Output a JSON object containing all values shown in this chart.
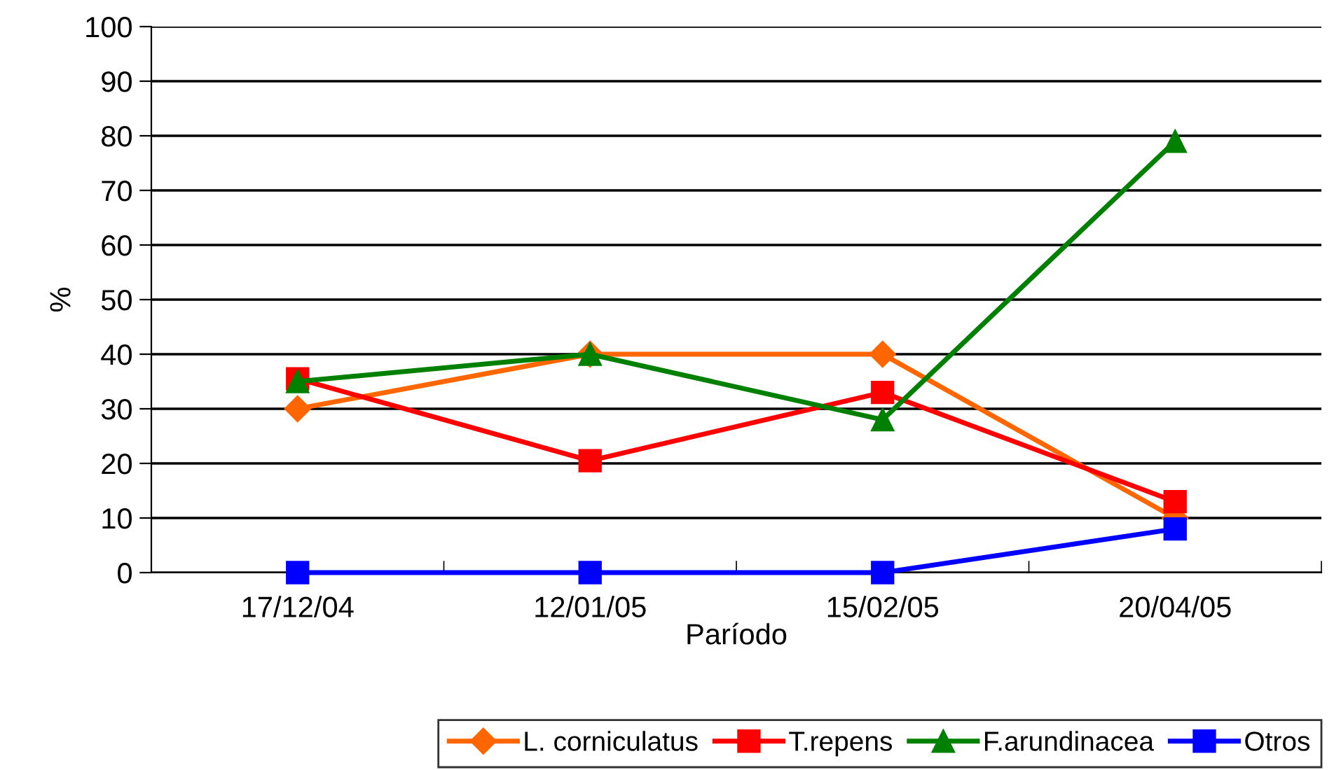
{
  "chart_data": {
    "type": "line",
    "xlabel": "Paríodo",
    "ylabel": "%",
    "categories": [
      "17/12/04",
      "12/01/05",
      "15/02/05",
      "20/04/05"
    ],
    "series": [
      {
        "name": "L. corniculatus",
        "color": "#ff6600",
        "marker": "diamond",
        "values": [
          30,
          40,
          40,
          10
        ]
      },
      {
        "name": "T.repens",
        "color": "#ff0000",
        "marker": "square",
        "values": [
          35.5,
          20.5,
          33,
          13
        ]
      },
      {
        "name": "F.arundinacea",
        "color": "#008000",
        "marker": "triangle",
        "values": [
          35,
          40,
          28,
          79
        ]
      },
      {
        "name": "Otros",
        "color": "#0000ff",
        "marker": "square",
        "values": [
          0,
          0,
          0,
          8
        ]
      }
    ],
    "ylim": [
      0,
      100
    ],
    "yticks": [
      0,
      10,
      20,
      30,
      40,
      50,
      60,
      70,
      80,
      90,
      100
    ],
    "grid": "y",
    "legend": "bottom right",
    "line_style": "solid"
  }
}
